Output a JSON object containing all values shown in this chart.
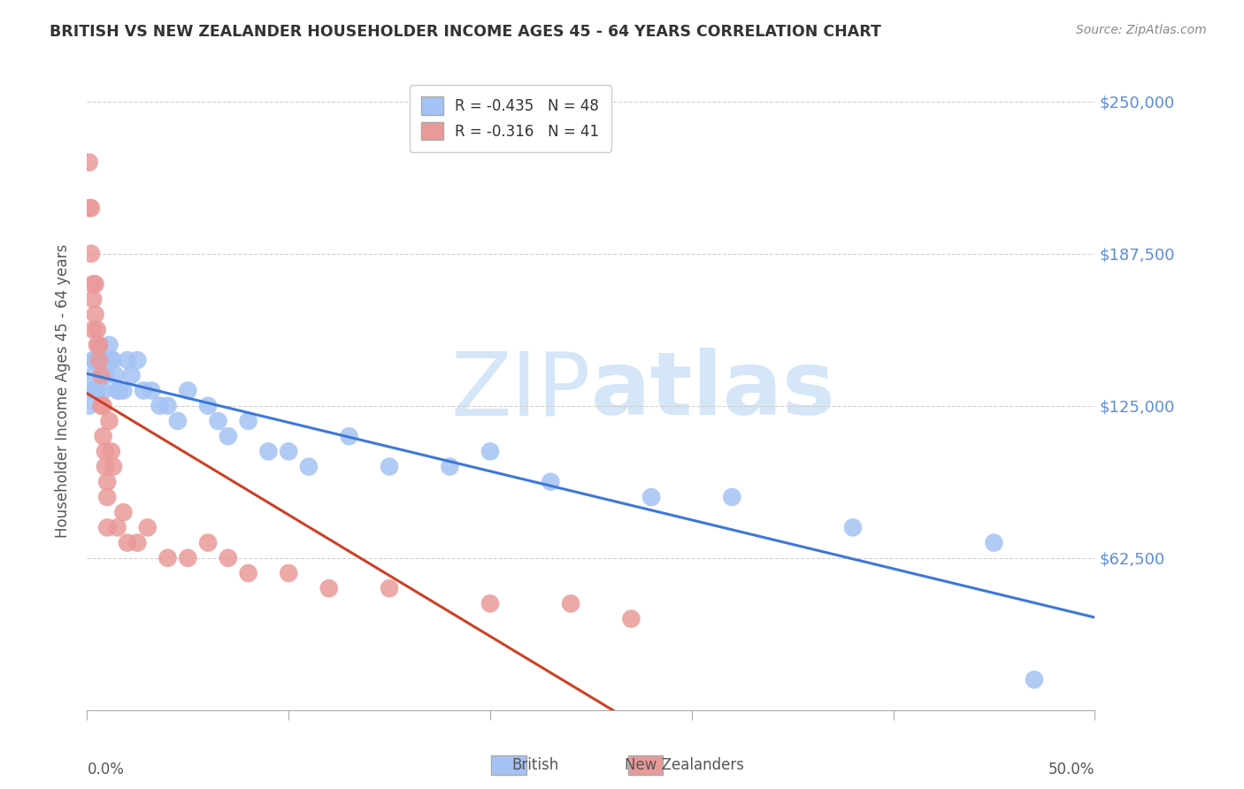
{
  "title": "BRITISH VS NEW ZEALANDER HOUSEHOLDER INCOME AGES 45 - 64 YEARS CORRELATION CHART",
  "source": "Source: ZipAtlas.com",
  "ylabel": "Householder Income Ages 45 - 64 years",
  "y_tick_labels": [
    "$62,500",
    "$125,000",
    "$187,500",
    "$250,000"
  ],
  "y_tick_values": [
    62500,
    125000,
    187500,
    250000
  ],
  "y_label_color": "#5b8dd9",
  "legend_british": "R = -0.435   N = 48",
  "legend_nz": "R = -0.316   N = 41",
  "british_color": "#a4c2f4",
  "nz_color": "#ea9999",
  "british_line_color": "#3c78d8",
  "nz_line_color": "#cc4125",
  "nz_dashed_color": "#e06666",
  "watermark_color": "#d0e4f7",
  "british_x": [
    0.001,
    0.002,
    0.003,
    0.003,
    0.004,
    0.004,
    0.005,
    0.005,
    0.006,
    0.006,
    0.007,
    0.008,
    0.008,
    0.009,
    0.01,
    0.011,
    0.012,
    0.013,
    0.014,
    0.015,
    0.016,
    0.018,
    0.02,
    0.022,
    0.025,
    0.028,
    0.032,
    0.036,
    0.04,
    0.045,
    0.05,
    0.06,
    0.065,
    0.07,
    0.08,
    0.09,
    0.1,
    0.11,
    0.13,
    0.15,
    0.18,
    0.2,
    0.23,
    0.28,
    0.32,
    0.38,
    0.45,
    0.47
  ],
  "british_y": [
    125000,
    131250,
    143750,
    137500,
    143750,
    131250,
    143750,
    131250,
    150000,
    143750,
    137500,
    143750,
    131250,
    137500,
    143750,
    150000,
    143750,
    143750,
    137500,
    131250,
    131250,
    131250,
    143750,
    137500,
    143750,
    131250,
    131250,
    125000,
    125000,
    118750,
    131250,
    125000,
    118750,
    112500,
    118750,
    106250,
    106250,
    100000,
    112500,
    100000,
    100000,
    106250,
    93750,
    87500,
    87500,
    75000,
    68750,
    12500
  ],
  "nz_x": [
    0.001,
    0.001,
    0.002,
    0.002,
    0.003,
    0.003,
    0.003,
    0.004,
    0.004,
    0.005,
    0.005,
    0.006,
    0.006,
    0.007,
    0.007,
    0.008,
    0.008,
    0.009,
    0.009,
    0.01,
    0.01,
    0.011,
    0.012,
    0.013,
    0.015,
    0.018,
    0.02,
    0.025,
    0.03,
    0.04,
    0.05,
    0.06,
    0.07,
    0.08,
    0.1,
    0.12,
    0.15,
    0.2,
    0.24,
    0.27,
    0.01
  ],
  "nz_y": [
    225000,
    206250,
    206250,
    187500,
    175000,
    168750,
    156250,
    175000,
    162500,
    156250,
    150000,
    150000,
    143750,
    137500,
    125000,
    125000,
    112500,
    106250,
    100000,
    93750,
    87500,
    118750,
    106250,
    100000,
    75000,
    81250,
    68750,
    68750,
    75000,
    62500,
    62500,
    68750,
    62500,
    56250,
    56250,
    50000,
    50000,
    43750,
    43750,
    37500,
    75000
  ],
  "xlim": [
    0.0,
    0.5
  ],
  "ylim": [
    0,
    262500
  ],
  "background_color": "#ffffff",
  "grid_color": "#d0d0d0"
}
